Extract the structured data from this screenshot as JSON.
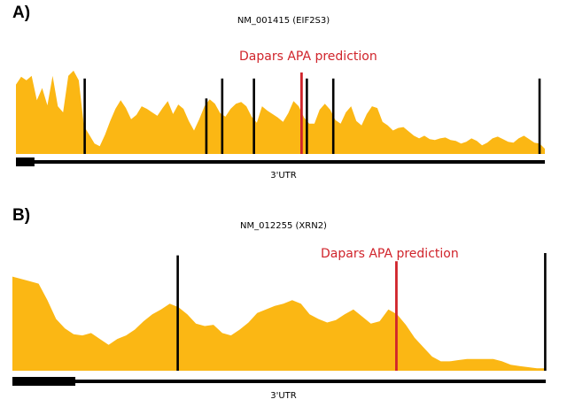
{
  "colors": {
    "coverage": "#FBB714",
    "site": "#000000",
    "prediction": "#D0242B",
    "gene_model": "#000000"
  },
  "panels": [
    {
      "id": "A",
      "label": "A)",
      "title": "NM_001415 (EIF2S3)",
      "prediction_label": "Dapars APA prediction",
      "utr_label": "3'UTR",
      "coverage_profile": [
        0.8,
        0.89,
        0.85,
        0.9,
        0.62,
        0.76,
        0.56,
        0.9,
        0.55,
        0.48,
        0.9,
        0.96,
        0.85,
        0.32,
        0.22,
        0.12,
        0.09,
        0.22,
        0.38,
        0.52,
        0.62,
        0.53,
        0.4,
        0.45,
        0.55,
        0.52,
        0.48,
        0.44,
        0.53,
        0.61,
        0.46,
        0.57,
        0.52,
        0.38,
        0.27,
        0.4,
        0.55,
        0.63,
        0.58,
        0.47,
        0.43,
        0.52,
        0.58,
        0.6,
        0.55,
        0.43,
        0.36,
        0.55,
        0.5,
        0.46,
        0.42,
        0.37,
        0.47,
        0.61,
        0.55,
        0.42,
        0.35,
        0.35,
        0.51,
        0.58,
        0.51,
        0.39,
        0.35,
        0.48,
        0.55,
        0.38,
        0.33,
        0.46,
        0.55,
        0.53,
        0.37,
        0.33,
        0.27,
        0.3,
        0.31,
        0.26,
        0.21,
        0.18,
        0.21,
        0.17,
        0.16,
        0.18,
        0.19,
        0.16,
        0.15,
        0.12,
        0.14,
        0.18,
        0.15,
        0.1,
        0.13,
        0.18,
        0.2,
        0.17,
        0.14,
        0.13,
        0.18,
        0.21,
        0.17,
        0.13,
        0.12,
        0.06
      ],
      "polya_site_fractions": [
        0.13,
        0.36,
        0.39,
        0.45,
        0.55,
        0.6,
        0.99
      ],
      "prediction_fraction": 0.54,
      "site_heights": [
        0.87,
        0.64,
        0.87,
        0.87,
        0.87,
        0.87,
        0.87
      ],
      "prediction_height": 0.94,
      "gene_model": {
        "thick_end_fraction": 0.035
      }
    },
    {
      "id": "B",
      "label": "B)",
      "title": "NM_012255 (XRN2)",
      "prediction_label": "Dapars APA prediction",
      "utr_label": "3'UTR",
      "coverage_profile": [
        0.8,
        0.78,
        0.76,
        0.74,
        0.6,
        0.44,
        0.36,
        0.31,
        0.3,
        0.32,
        0.27,
        0.22,
        0.27,
        0.3,
        0.35,
        0.42,
        0.48,
        0.52,
        0.57,
        0.54,
        0.48,
        0.4,
        0.38,
        0.39,
        0.32,
        0.3,
        0.35,
        0.41,
        0.49,
        0.52,
        0.55,
        0.57,
        0.6,
        0.57,
        0.48,
        0.44,
        0.41,
        0.43,
        0.48,
        0.52,
        0.46,
        0.4,
        0.42,
        0.52,
        0.48,
        0.39,
        0.28,
        0.2,
        0.12,
        0.08,
        0.08,
        0.09,
        0.1,
        0.1,
        0.1,
        0.1,
        0.08,
        0.05,
        0.04,
        0.03,
        0.02,
        0.02
      ],
      "polya_site_fractions": [
        0.31,
        0.72,
        0.999
      ],
      "prediction_fraction": 0.72,
      "site_heights": [
        0.98,
        0.0,
        1.0
      ],
      "prediction_height": 0.93,
      "gene_model": {
        "thick_end_fraction": 0.118
      }
    }
  ]
}
